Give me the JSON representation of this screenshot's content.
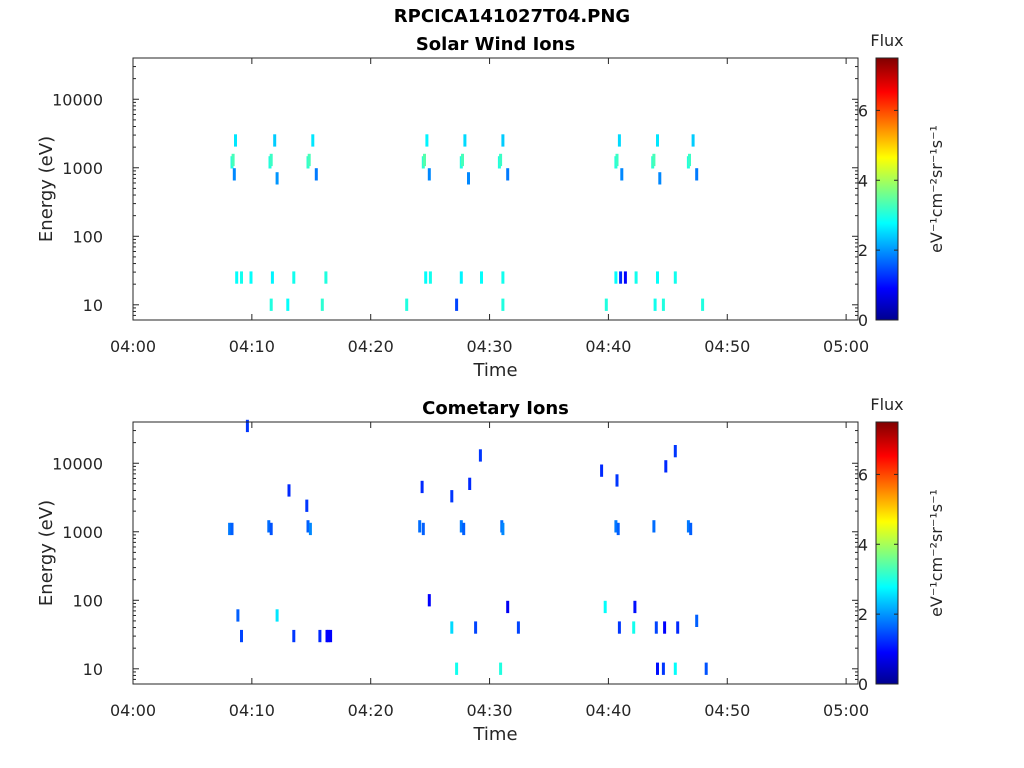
{
  "figure": {
    "title": "RPCICA141027T04.PNG"
  },
  "chart_data": [
    {
      "type": "heatmap",
      "title": "Solar Wind Ions",
      "xlabel": "Time",
      "ylabel": "Energy (eV)",
      "x_ticks": [
        "04:00",
        "04:10",
        "04:20",
        "04:30",
        "04:40",
        "04:50",
        "05:00"
      ],
      "x_range_minutes": [
        0,
        61
      ],
      "y_scale": "log",
      "y_ticks": [
        "10",
        "100",
        "1000",
        "10000"
      ],
      "y_range": [
        6,
        40000
      ],
      "colorbar": {
        "title": "Flux",
        "unit": "eV⁻¹cm⁻²sr⁻¹s⁻¹",
        "ticks": [
          "0",
          "2",
          "4",
          "6"
        ],
        "range": [
          0,
          7.5
        ],
        "colormap": "jet"
      },
      "scan_groups": [
        {
          "start_min": 7.2,
          "end_min": 16.7
        },
        {
          "start_min": 22.9,
          "end_min": 32.6
        },
        {
          "start_min": 39.7,
          "end_min": 48.5
        }
      ],
      "cells": [
        [
          8.2,
          1200,
          3.0
        ],
        [
          8.3,
          1300,
          3.3
        ],
        [
          8.5,
          2500,
          2.6
        ],
        [
          8.4,
          800,
          1.9
        ],
        [
          11.4,
          1200,
          3.0
        ],
        [
          11.5,
          1300,
          3.2
        ],
        [
          11.8,
          2500,
          2.4
        ],
        [
          12.0,
          700,
          2.0
        ],
        [
          14.6,
          1200,
          3.1
        ],
        [
          14.7,
          1300,
          3.3
        ],
        [
          15.0,
          2500,
          2.6
        ],
        [
          15.3,
          800,
          1.8
        ],
        [
          24.3,
          1200,
          3.1
        ],
        [
          24.4,
          1300,
          3.4
        ],
        [
          24.6,
          2500,
          2.7
        ],
        [
          24.8,
          800,
          1.9
        ],
        [
          27.5,
          1200,
          3.0
        ],
        [
          27.6,
          1300,
          3.3
        ],
        [
          27.8,
          2500,
          2.5
        ],
        [
          28.1,
          700,
          1.9
        ],
        [
          30.7,
          1200,
          3.0
        ],
        [
          30.8,
          1300,
          3.2
        ],
        [
          31.0,
          2500,
          2.4
        ],
        [
          31.4,
          800,
          1.8
        ],
        [
          40.5,
          1200,
          3.0
        ],
        [
          40.6,
          1300,
          3.2
        ],
        [
          40.8,
          2500,
          2.5
        ],
        [
          41.0,
          800,
          1.9
        ],
        [
          43.6,
          1200,
          3.1
        ],
        [
          43.7,
          1300,
          3.3
        ],
        [
          44.0,
          2500,
          2.6
        ],
        [
          44.2,
          700,
          1.9
        ],
        [
          46.6,
          1200,
          3.0
        ],
        [
          46.7,
          1300,
          3.2
        ],
        [
          47.0,
          2500,
          2.4
        ],
        [
          47.3,
          800,
          1.8
        ],
        [
          8.6,
          25,
          2.8
        ],
        [
          9.0,
          25,
          2.9
        ],
        [
          9.8,
          25,
          2.8
        ],
        [
          11.6,
          25,
          2.7
        ],
        [
          13.4,
          25,
          2.9
        ],
        [
          16.1,
          25,
          3.0
        ],
        [
          24.5,
          25,
          2.8
        ],
        [
          24.9,
          25,
          2.9
        ],
        [
          27.5,
          25,
          2.7
        ],
        [
          29.2,
          25,
          2.8
        ],
        [
          31.0,
          25,
          2.9
        ],
        [
          40.5,
          25,
          2.8
        ],
        [
          40.9,
          25,
          1.2
        ],
        [
          41.3,
          25,
          0.9
        ],
        [
          42.2,
          25,
          2.9
        ],
        [
          44.0,
          25,
          2.8
        ],
        [
          45.5,
          25,
          2.9
        ],
        [
          11.5,
          10,
          3.0
        ],
        [
          12.9,
          10,
          2.8
        ],
        [
          15.8,
          10,
          3.1
        ],
        [
          22.9,
          10,
          3.0
        ],
        [
          27.1,
          10,
          1.4
        ],
        [
          31.0,
          10,
          3.0
        ],
        [
          39.7,
          10,
          3.0
        ],
        [
          43.8,
          10,
          2.9
        ],
        [
          44.5,
          10,
          3.0
        ],
        [
          47.8,
          10,
          3.0
        ]
      ]
    },
    {
      "type": "heatmap",
      "title": "Cometary Ions",
      "xlabel": "Time",
      "ylabel": "Energy (eV)",
      "x_ticks": [
        "04:00",
        "04:10",
        "04:20",
        "04:30",
        "04:40",
        "04:50",
        "05:00"
      ],
      "x_range_minutes": [
        0,
        61
      ],
      "y_scale": "log",
      "y_ticks": [
        "10",
        "100",
        "1000",
        "10000"
      ],
      "y_range": [
        6,
        40000
      ],
      "colorbar": {
        "title": "Flux",
        "unit": "eV⁻¹cm⁻²sr⁻¹s⁻¹",
        "ticks": [
          "0",
          "2",
          "4",
          "6"
        ],
        "range": [
          0,
          7.5
        ],
        "colormap": "jet"
      },
      "cells": [
        [
          8.0,
          1100,
          1.8
        ],
        [
          8.2,
          1100,
          1.6
        ],
        [
          11.3,
          1200,
          1.7
        ],
        [
          11.5,
          1100,
          1.5
        ],
        [
          14.6,
          1200,
          1.6
        ],
        [
          14.8,
          1100,
          1.9
        ],
        [
          24.0,
          1200,
          1.7
        ],
        [
          24.3,
          1100,
          1.6
        ],
        [
          27.5,
          1200,
          1.8
        ],
        [
          27.7,
          1100,
          1.6
        ],
        [
          30.9,
          1200,
          1.7
        ],
        [
          31.0,
          1100,
          1.9
        ],
        [
          40.5,
          1200,
          1.8
        ],
        [
          40.7,
          1100,
          1.6
        ],
        [
          43.7,
          1200,
          1.7
        ],
        [
          46.6,
          1200,
          1.8
        ],
        [
          46.8,
          1100,
          1.6
        ],
        [
          9.5,
          35000,
          1.3
        ],
        [
          13.0,
          4000,
          1.2
        ],
        [
          14.5,
          2400,
          1.3
        ],
        [
          24.2,
          4500,
          1.2
        ],
        [
          26.7,
          3300,
          1.3
        ],
        [
          28.2,
          5000,
          1.2
        ],
        [
          29.1,
          13000,
          1.3
        ],
        [
          39.3,
          7800,
          1.2
        ],
        [
          40.6,
          5600,
          1.3
        ],
        [
          44.7,
          9000,
          1.2
        ],
        [
          45.5,
          15000,
          1.3
        ],
        [
          8.7,
          60,
          1.6
        ],
        [
          9.0,
          30,
          1.4
        ],
        [
          12.0,
          60,
          2.6
        ],
        [
          13.4,
          30,
          1.3
        ],
        [
          15.6,
          30,
          1.2
        ],
        [
          16.2,
          30,
          0.9
        ],
        [
          16.3,
          30,
          0.9
        ],
        [
          16.5,
          30,
          0.9
        ],
        [
          24.8,
          100,
          0.9
        ],
        [
          26.7,
          40,
          2.5
        ],
        [
          28.7,
          40,
          1.4
        ],
        [
          31.4,
          80,
          0.8
        ],
        [
          32.3,
          40,
          1.4
        ],
        [
          39.6,
          80,
          2.8
        ],
        [
          40.8,
          40,
          1.3
        ],
        [
          42.1,
          80,
          1.0
        ],
        [
          42.0,
          40,
          2.9
        ],
        [
          43.9,
          40,
          1.4
        ],
        [
          44.6,
          40,
          0.9
        ],
        [
          45.7,
          40,
          1.2
        ],
        [
          47.3,
          50,
          1.6
        ],
        [
          27.1,
          10,
          2.9
        ],
        [
          30.8,
          10,
          3.0
        ],
        [
          44.0,
          10,
          1.0
        ],
        [
          44.5,
          10,
          1.3
        ],
        [
          45.5,
          10,
          2.8
        ],
        [
          48.1,
          10,
          1.5
        ]
      ]
    }
  ]
}
